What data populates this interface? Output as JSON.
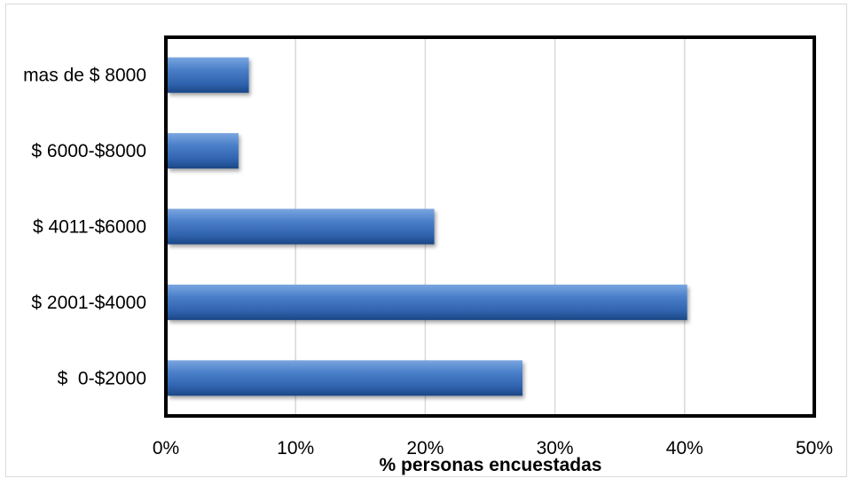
{
  "chart_data": {
    "type": "bar",
    "orientation": "horizontal",
    "title": "",
    "xlabel": "% personas encuestadas",
    "ylabel": "",
    "categories": [
      "$  0-$2000",
      "$ 2001-$4000",
      "$ 4011-$6000",
      "$ 6000-$8000",
      "mas de $ 8000"
    ],
    "values": [
      27.5,
      40.2,
      20.7,
      5.6,
      6.4
    ],
    "xlim": [
      0,
      50
    ],
    "xticks": [
      "0%",
      "10%",
      "20%",
      "30%",
      "40%",
      "50%"
    ],
    "grid": true,
    "legend": "none",
    "bar_color": "#3a6fb8",
    "bar_highlight": "#6fa0de",
    "bar_shadow": "#1f4a86"
  }
}
